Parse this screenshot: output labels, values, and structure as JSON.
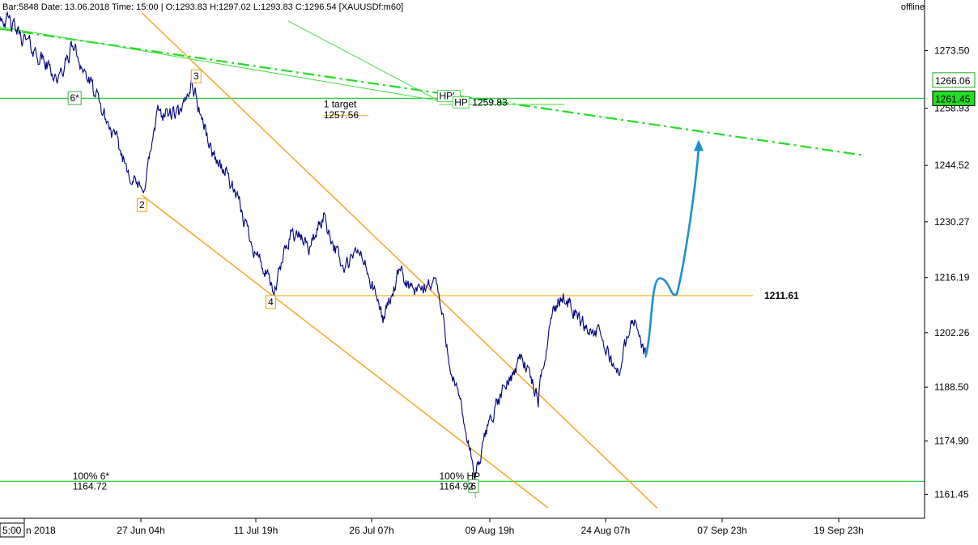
{
  "header": {
    "info": "Bar:5848 Date: 13.06.2018 Time: 15:00 | O:1293.83 H:1297.02 L:1293.83 C:1296.54  [XAUUSDf:m60]",
    "status": "offline"
  },
  "chart_data": {
    "type": "line",
    "symbol": "XAUUSDf:m60",
    "ylim": [
      1155.8,
      1283.0
    ],
    "y_ticks": [
      "1273.50",
      "1258.93",
      "1244.52",
      "1230.27",
      "1216.19",
      "1202.26",
      "1188.50",
      "1174.90",
      "1161.45"
    ],
    "y_tick_values": [
      1273.5,
      1258.93,
      1244.52,
      1230.27,
      1216.19,
      1202.26,
      1188.5,
      1174.9,
      1161.45
    ],
    "x_ticks": [
      "n 2018",
      "27 Jun 04h",
      "11 Jul 19h",
      "26 Jul 07h",
      "09 Aug 19h",
      "24 Aug 07h",
      "07 Sep 23h",
      "19 Sep 23h"
    ],
    "x_first_tick_box": "5:00",
    "grid": false,
    "price_series": {
      "color": "#00007f",
      "key_points": [
        {
          "bar": 0,
          "price": 1283.0
        },
        {
          "bar": 60,
          "price": 1272.0
        },
        {
          "bar": 90,
          "price": 1266.0
        },
        {
          "bar": 110,
          "price": 1275.0
        },
        {
          "bar": 150,
          "price": 1260.0
        },
        {
          "bar": 190,
          "price": 1245.0
        },
        {
          "bar": 215,
          "price": 1237.0
        },
        {
          "bar": 240,
          "price": 1258.0
        },
        {
          "bar": 275,
          "price": 1257.0
        },
        {
          "bar": 290,
          "price": 1266.0
        },
        {
          "bar": 320,
          "price": 1248.0
        },
        {
          "bar": 345,
          "price": 1242.0
        },
        {
          "bar": 380,
          "price": 1226.0
        },
        {
          "bar": 415,
          "price": 1212.0
        },
        {
          "bar": 440,
          "price": 1228.0
        },
        {
          "bar": 470,
          "price": 1224.0
        },
        {
          "bar": 490,
          "price": 1232.0
        },
        {
          "bar": 520,
          "price": 1218.0
        },
        {
          "bar": 545,
          "price": 1223.0
        },
        {
          "bar": 580,
          "price": 1206.0
        },
        {
          "bar": 605,
          "price": 1217.0
        },
        {
          "bar": 630,
          "price": 1212.0
        },
        {
          "bar": 660,
          "price": 1216.0
        },
        {
          "bar": 680,
          "price": 1196.0
        },
        {
          "bar": 710,
          "price": 1174.0
        },
        {
          "bar": 720,
          "price": 1164.92
        },
        {
          "bar": 740,
          "price": 1180.0
        },
        {
          "bar": 770,
          "price": 1190.0
        },
        {
          "bar": 790,
          "price": 1197.0
        },
        {
          "bar": 815,
          "price": 1185.0
        },
        {
          "bar": 835,
          "price": 1207.0
        },
        {
          "bar": 855,
          "price": 1212.0
        },
        {
          "bar": 880,
          "price": 1205.0
        },
        {
          "bar": 910,
          "price": 1201.0
        },
        {
          "bar": 935,
          "price": 1192.0
        },
        {
          "bar": 960,
          "price": 1206.0
        },
        {
          "bar": 978,
          "price": 1196.0
        }
      ],
      "total_bars": 1400
    },
    "forecast_path": {
      "color": "#1e90d0",
      "points": [
        {
          "bar": 978,
          "price": 1196.5
        },
        {
          "bar": 1000,
          "price": 1216.0
        },
        {
          "bar": 1025,
          "price": 1212.0
        },
        {
          "bar": 1058,
          "price": 1251.0
        }
      ]
    },
    "wave_labels": [
      {
        "text": "6*",
        "bar": 113,
        "price": 1261.5,
        "color": "#3cb043"
      },
      {
        "text": "2",
        "bar": 215,
        "price": 1234.5,
        "color": "#f0a000"
      },
      {
        "text": "3",
        "bar": 297,
        "price": 1267.0,
        "color": "#f0a000"
      },
      {
        "text": "4",
        "bar": 410,
        "price": 1210.0,
        "color": "#f0a000"
      },
      {
        "text": "6",
        "bar": 717,
        "price": 1163.5,
        "color": "#3cb043"
      }
    ],
    "annotations": [
      {
        "text": "1 target",
        "bar": 490,
        "price": 1259.2
      },
      {
        "text": "1257.56",
        "bar": 490,
        "price": 1256.4
      },
      {
        "text": "HP'",
        "bar": 665,
        "price": 1261.2
      },
      {
        "text": "HP",
        "bar": 688,
        "price": 1259.6
      },
      {
        "text": "1259.83",
        "bar": 715,
        "price": 1259.6
      },
      {
        "text": "100% 6*",
        "bar": 110,
        "price": 1165.2
      },
      {
        "text": "1164.72",
        "bar": 110,
        "price": 1162.6
      },
      {
        "text": "100% HP",
        "bar": 665,
        "price": 1165.2
      },
      {
        "text": "1164.92",
        "bar": 665,
        "price": 1162.6
      }
    ],
    "horizontal_levels": [
      {
        "price": 1211.61,
        "label": "1211.61",
        "color": "#f0b429"
      },
      {
        "price": 1261.45,
        "label": "1261.45",
        "color": "#2ecc40"
      },
      {
        "price": 1164.72,
        "label": "",
        "color": "#2ecc40"
      }
    ],
    "price_tags": [
      {
        "price": 1266.06,
        "label": "1266.06",
        "style": "outline"
      },
      {
        "price": 1261.45,
        "label": "1261.45",
        "style": "filled"
      }
    ],
    "trendlines": [
      {
        "name": "channel-upper",
        "color": "#f5a623",
        "from": {
          "bar": 215,
          "price": 1283.0
        },
        "to": {
          "bar": 995,
          "price": 1158.0
        }
      },
      {
        "name": "channel-lower",
        "color": "#f5a623",
        "from": {
          "bar": 215,
          "price": 1237.0
        },
        "to": {
          "bar": 830,
          "price": 1158.0
        }
      },
      {
        "name": "long-dashdot",
        "color": "#22dd22",
        "dashed": true,
        "from": {
          "bar": 0,
          "price": 1279.0
        },
        "to": {
          "bar": 1310,
          "price": 1247.0
        }
      },
      {
        "name": "hp-line-1",
        "color": "#44dd44",
        "from": {
          "bar": 0,
          "price": 1279.5
        },
        "to": {
          "bar": 665,
          "price": 1260.8
        }
      },
      {
        "name": "hp-line-2",
        "color": "#44dd44",
        "from": {
          "bar": 436,
          "price": 1281.0
        },
        "to": {
          "bar": 665,
          "price": 1260.8
        }
      },
      {
        "name": "hp-level",
        "color": "#44dd44",
        "from": {
          "bar": 665,
          "price": 1259.9
        },
        "to": {
          "bar": 855,
          "price": 1259.9
        }
      },
      {
        "name": "target-tick",
        "color": "#f0b429",
        "from": {
          "bar": 490,
          "price": 1257.1
        },
        "to": {
          "bar": 558,
          "price": 1257.1
        }
      },
      {
        "name": "hp-vertical",
        "color": "#44dd44",
        "from": {
          "bar": 720,
          "price": 1164.9
        },
        "to": {
          "bar": 720,
          "price": 1160.5
        }
      }
    ]
  }
}
